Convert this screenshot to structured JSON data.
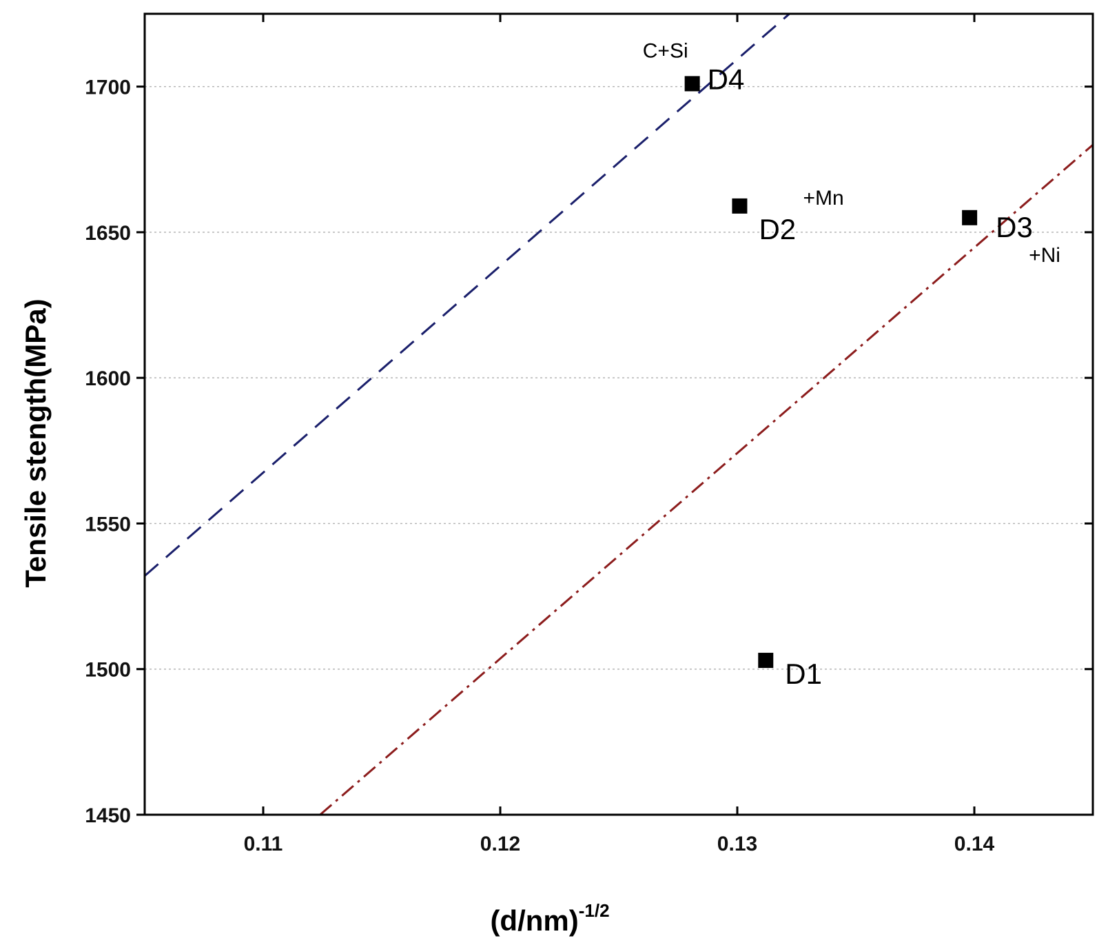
{
  "chart_data": {
    "type": "scatter",
    "title": "",
    "xlabel": "(d/nm)",
    "xlabel_superscript": "-1/2",
    "ylabel": "Tensile stength(MPa)",
    "xlim": [
      0.105,
      0.145
    ],
    "ylim": [
      1450,
      1725
    ],
    "xticks": [
      0.11,
      0.12,
      0.13,
      0.14
    ],
    "xtick_labels": [
      "0.11",
      "0.12",
      "0.13",
      "0.14"
    ],
    "yticks": [
      1450,
      1500,
      1550,
      1600,
      1650,
      1700
    ],
    "ytick_labels": [
      "1450",
      "1500",
      "1550",
      "1600",
      "1650",
      "1700"
    ],
    "grid": "horizontal-dotted",
    "points": [
      {
        "label": "D1",
        "x": 0.1312,
        "y": 1503,
        "annotation": ""
      },
      {
        "label": "D2",
        "x": 0.1301,
        "y": 1659,
        "annotation": "+Mn"
      },
      {
        "label": "D3",
        "x": 0.1398,
        "y": 1655,
        "annotation": "+Ni"
      },
      {
        "label": "D4",
        "x": 0.1281,
        "y": 1701,
        "annotation": "C+Si"
      }
    ],
    "lines": [
      {
        "name": "upper-fit",
        "style": "dashed",
        "color": "#1a1f6b",
        "x": [
          0.105,
          0.1322
        ],
        "y": [
          1532,
          1725
        ]
      },
      {
        "name": "lower-fit",
        "style": "dash-dot",
        "color": "#8c1c1c",
        "x": [
          0.1124,
          0.145
        ],
        "y": [
          1450,
          1680
        ]
      }
    ]
  }
}
